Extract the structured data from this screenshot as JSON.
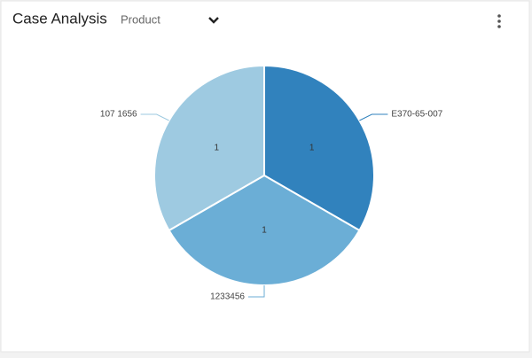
{
  "header": {
    "title": "Case Analysis",
    "dropdown": "Product"
  },
  "chart_data": {
    "type": "pie",
    "categories": [
      "E370-65-007",
      "1233456",
      "107 1656"
    ],
    "values": [
      1,
      1,
      1
    ],
    "colors": [
      "#3182bd",
      "#6baed6",
      "#9ecae1"
    ]
  }
}
